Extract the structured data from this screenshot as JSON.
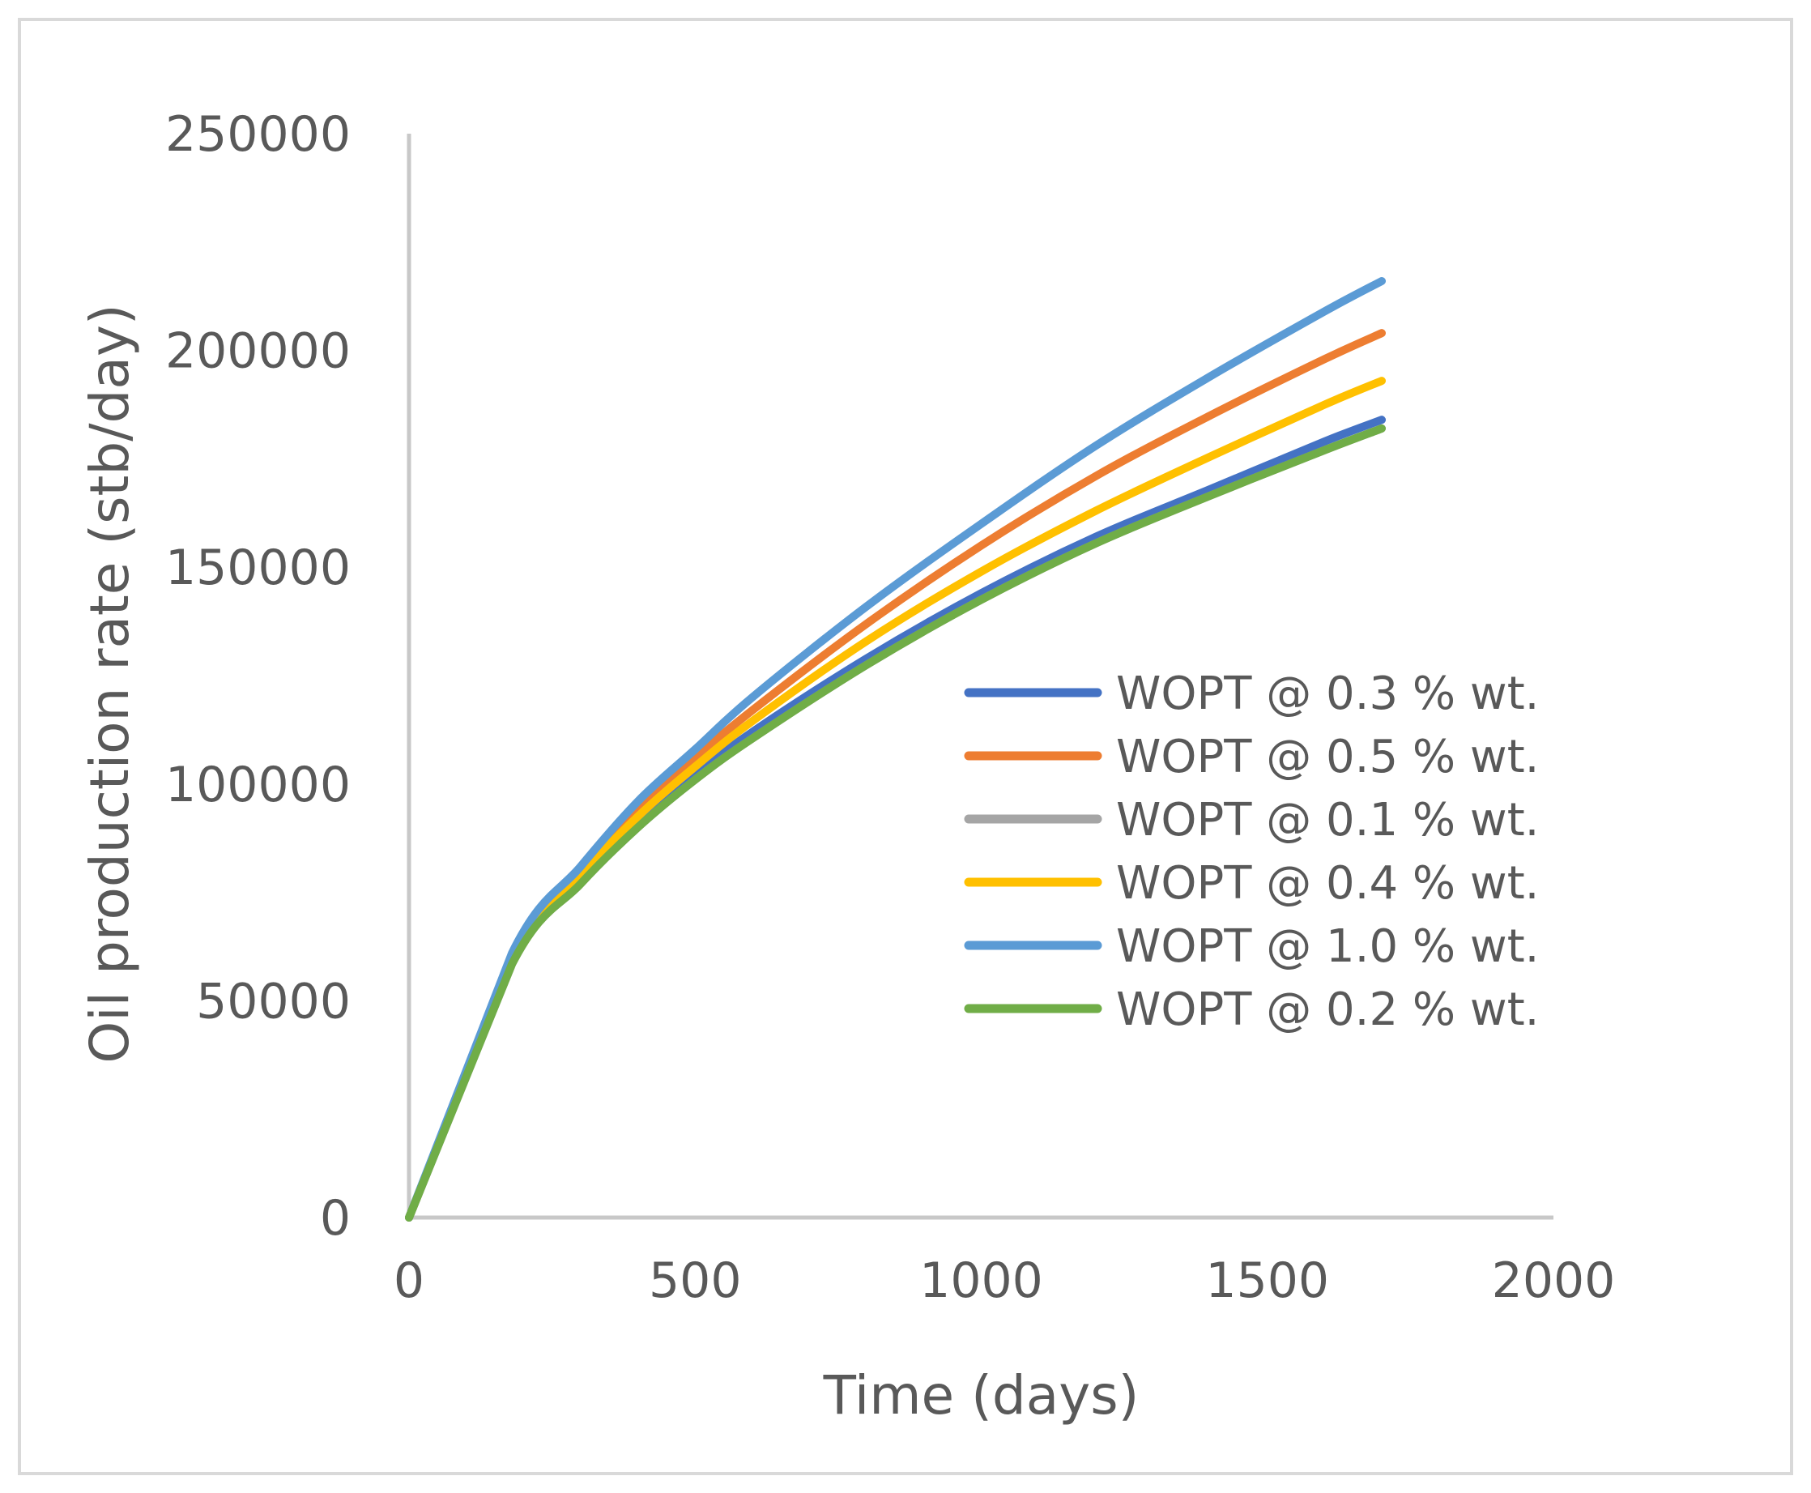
{
  "chart_data": {
    "type": "line",
    "title": "",
    "xlabel": "Time (days)",
    "ylabel": "Oil production rate (stb/day)",
    "xlim": [
      0,
      2000
    ],
    "ylim": [
      0,
      250000
    ],
    "x_ticks": [
      "0",
      "500",
      "1000",
      "1500",
      "2000"
    ],
    "y_ticks": [
      "0",
      "50000",
      "100000",
      "150000",
      "200000",
      "250000"
    ],
    "x_tick_values": [
      0,
      500,
      1000,
      1500,
      2000
    ],
    "y_tick_values": [
      0,
      50000,
      100000,
      150000,
      200000,
      250000
    ],
    "grid": false,
    "legend_position": "right",
    "x": [
      0,
      180,
      300,
      400,
      500,
      600,
      800,
      1000,
      1200,
      1400,
      1600,
      1700
    ],
    "series": [
      {
        "name": "WOPT @ 0.3 % wt.",
        "color": "#4472C4",
        "values": [
          0,
          59000,
          78000,
          91000,
          102000,
          112000,
          129000,
          144000,
          157000,
          168000,
          179000,
          184000
        ]
      },
      {
        "name": "WOPT @ 0.5 % wt.",
        "color": "#ED7D31",
        "values": [
          0,
          60000,
          80000,
          94000,
          106000,
          117000,
          137000,
          155000,
          171000,
          185000,
          198000,
          204000
        ]
      },
      {
        "name": "WOPT @ 0.1 % wt.",
        "color": "#A5A5A5",
        "values": [
          0,
          58500,
          77000,
          90000,
          101000,
          110500,
          127500,
          142500,
          155500,
          166500,
          177000,
          182000
        ]
      },
      {
        "name": "WOPT @ 0.4 % wt.",
        "color": "#FFC000",
        "values": [
          0,
          59500,
          79000,
          92500,
          104000,
          114500,
          133000,
          149000,
          163000,
          175500,
          187500,
          193000
        ]
      },
      {
        "name": "WOPT @ 1.0 % wt.",
        "color": "#5B9BD5",
        "values": [
          0,
          61000,
          81000,
          96000,
          108000,
          120000,
          141000,
          160000,
          178000,
          194000,
          209000,
          216000
        ]
      },
      {
        "name": "WOPT @ 0.2 % wt.",
        "color": "#70AD47",
        "values": [
          0,
          58500,
          77000,
          90000,
          101000,
          110500,
          127500,
          142500,
          155500,
          166500,
          177000,
          182000
        ]
      }
    ]
  }
}
